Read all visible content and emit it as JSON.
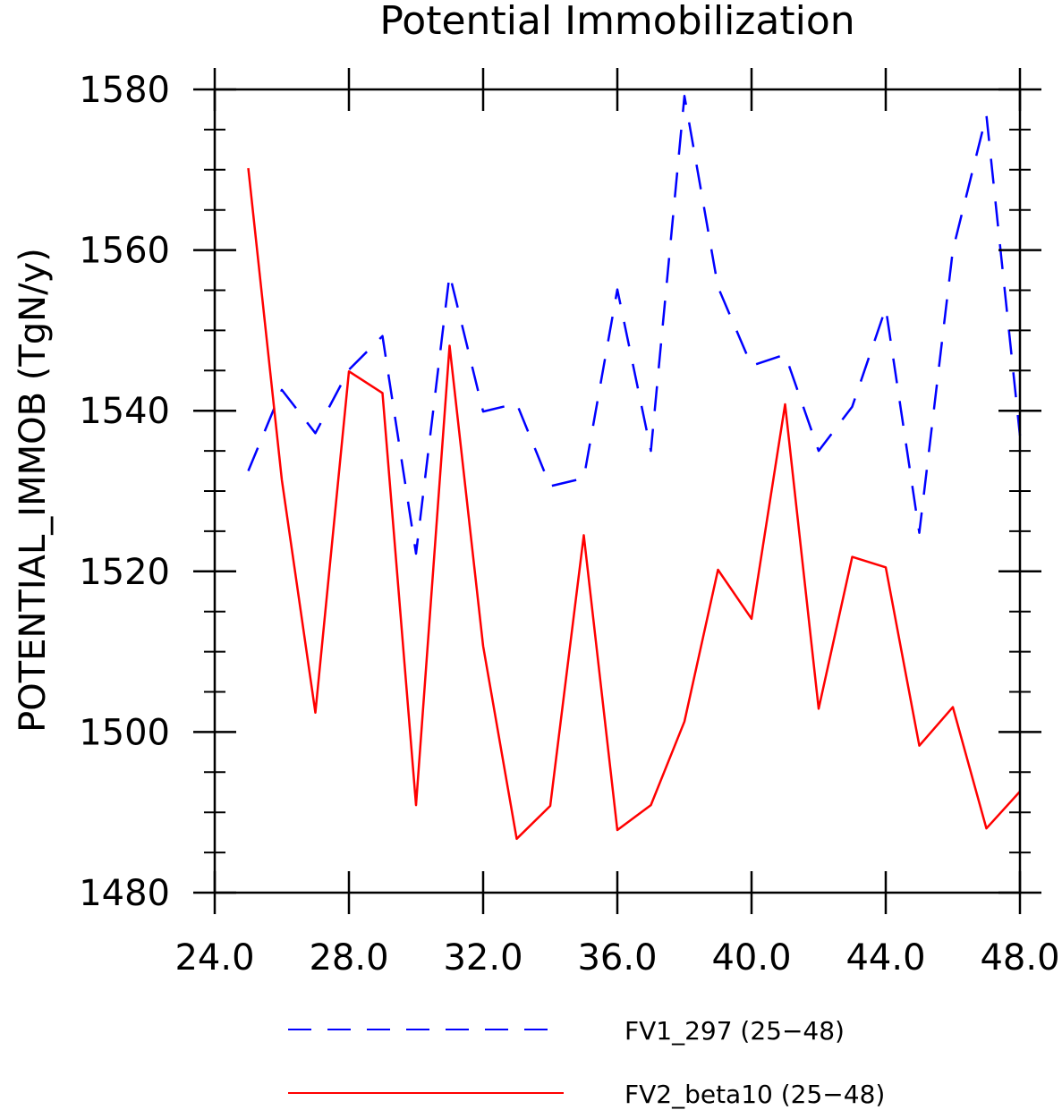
{
  "chart_data": {
    "type": "line",
    "title": "Potential Immobilization",
    "xlabel": "",
    "ylabel": "POTENTIAL_IMMOB   (TgN/y)",
    "xlim": [
      24,
      48
    ],
    "ylim": [
      1480,
      1580
    ],
    "x_ticks": [
      24,
      28,
      32,
      36,
      40,
      44,
      48
    ],
    "x_tick_labels": [
      "24.0",
      "28.0",
      "32.0",
      "36.0",
      "40.0",
      "44.0",
      "48.0"
    ],
    "y_ticks": [
      1480,
      1500,
      1520,
      1540,
      1560,
      1580
    ],
    "y_tick_labels": [
      "1480",
      "1500",
      "1520",
      "1540",
      "1560",
      "1580"
    ],
    "grid": false,
    "legend_position": "bottom",
    "x": [
      25,
      26,
      27,
      28,
      29,
      30,
      31,
      32,
      33,
      34,
      35,
      36,
      37,
      38,
      39,
      40,
      41,
      42,
      43,
      44,
      45,
      46,
      47,
      48
    ],
    "series": [
      {
        "name": "FV1_297 (25−48)",
        "color": "#0000ff",
        "dash": "dashed",
        "values": [
          1532.5,
          1542.6,
          1537.2,
          1545.1,
          1549.3,
          1522.2,
          1557.0,
          1539.9,
          1540.9,
          1530.6,
          1531.6,
          1555.1,
          1535.0,
          1579.2,
          1555.4,
          1545.6,
          1547.0,
          1535.0,
          1540.5,
          1552.8,
          1524.8,
          1560.0,
          1576.8,
          1536.9
        ]
      },
      {
        "name": "FV2_beta10 (25−48)",
        "color": "#ff0000",
        "dash": "solid",
        "values": [
          1570.2,
          1531.4,
          1502.4,
          1544.9,
          1542.2,
          1490.9,
          1548.1,
          1510.7,
          1486.7,
          1490.8,
          1524.5,
          1487.8,
          1490.9,
          1501.3,
          1520.2,
          1514.1,
          1540.8,
          1502.9,
          1521.8,
          1520.5,
          1498.3,
          1503.1,
          1488.0,
          1492.6
        ]
      }
    ]
  }
}
